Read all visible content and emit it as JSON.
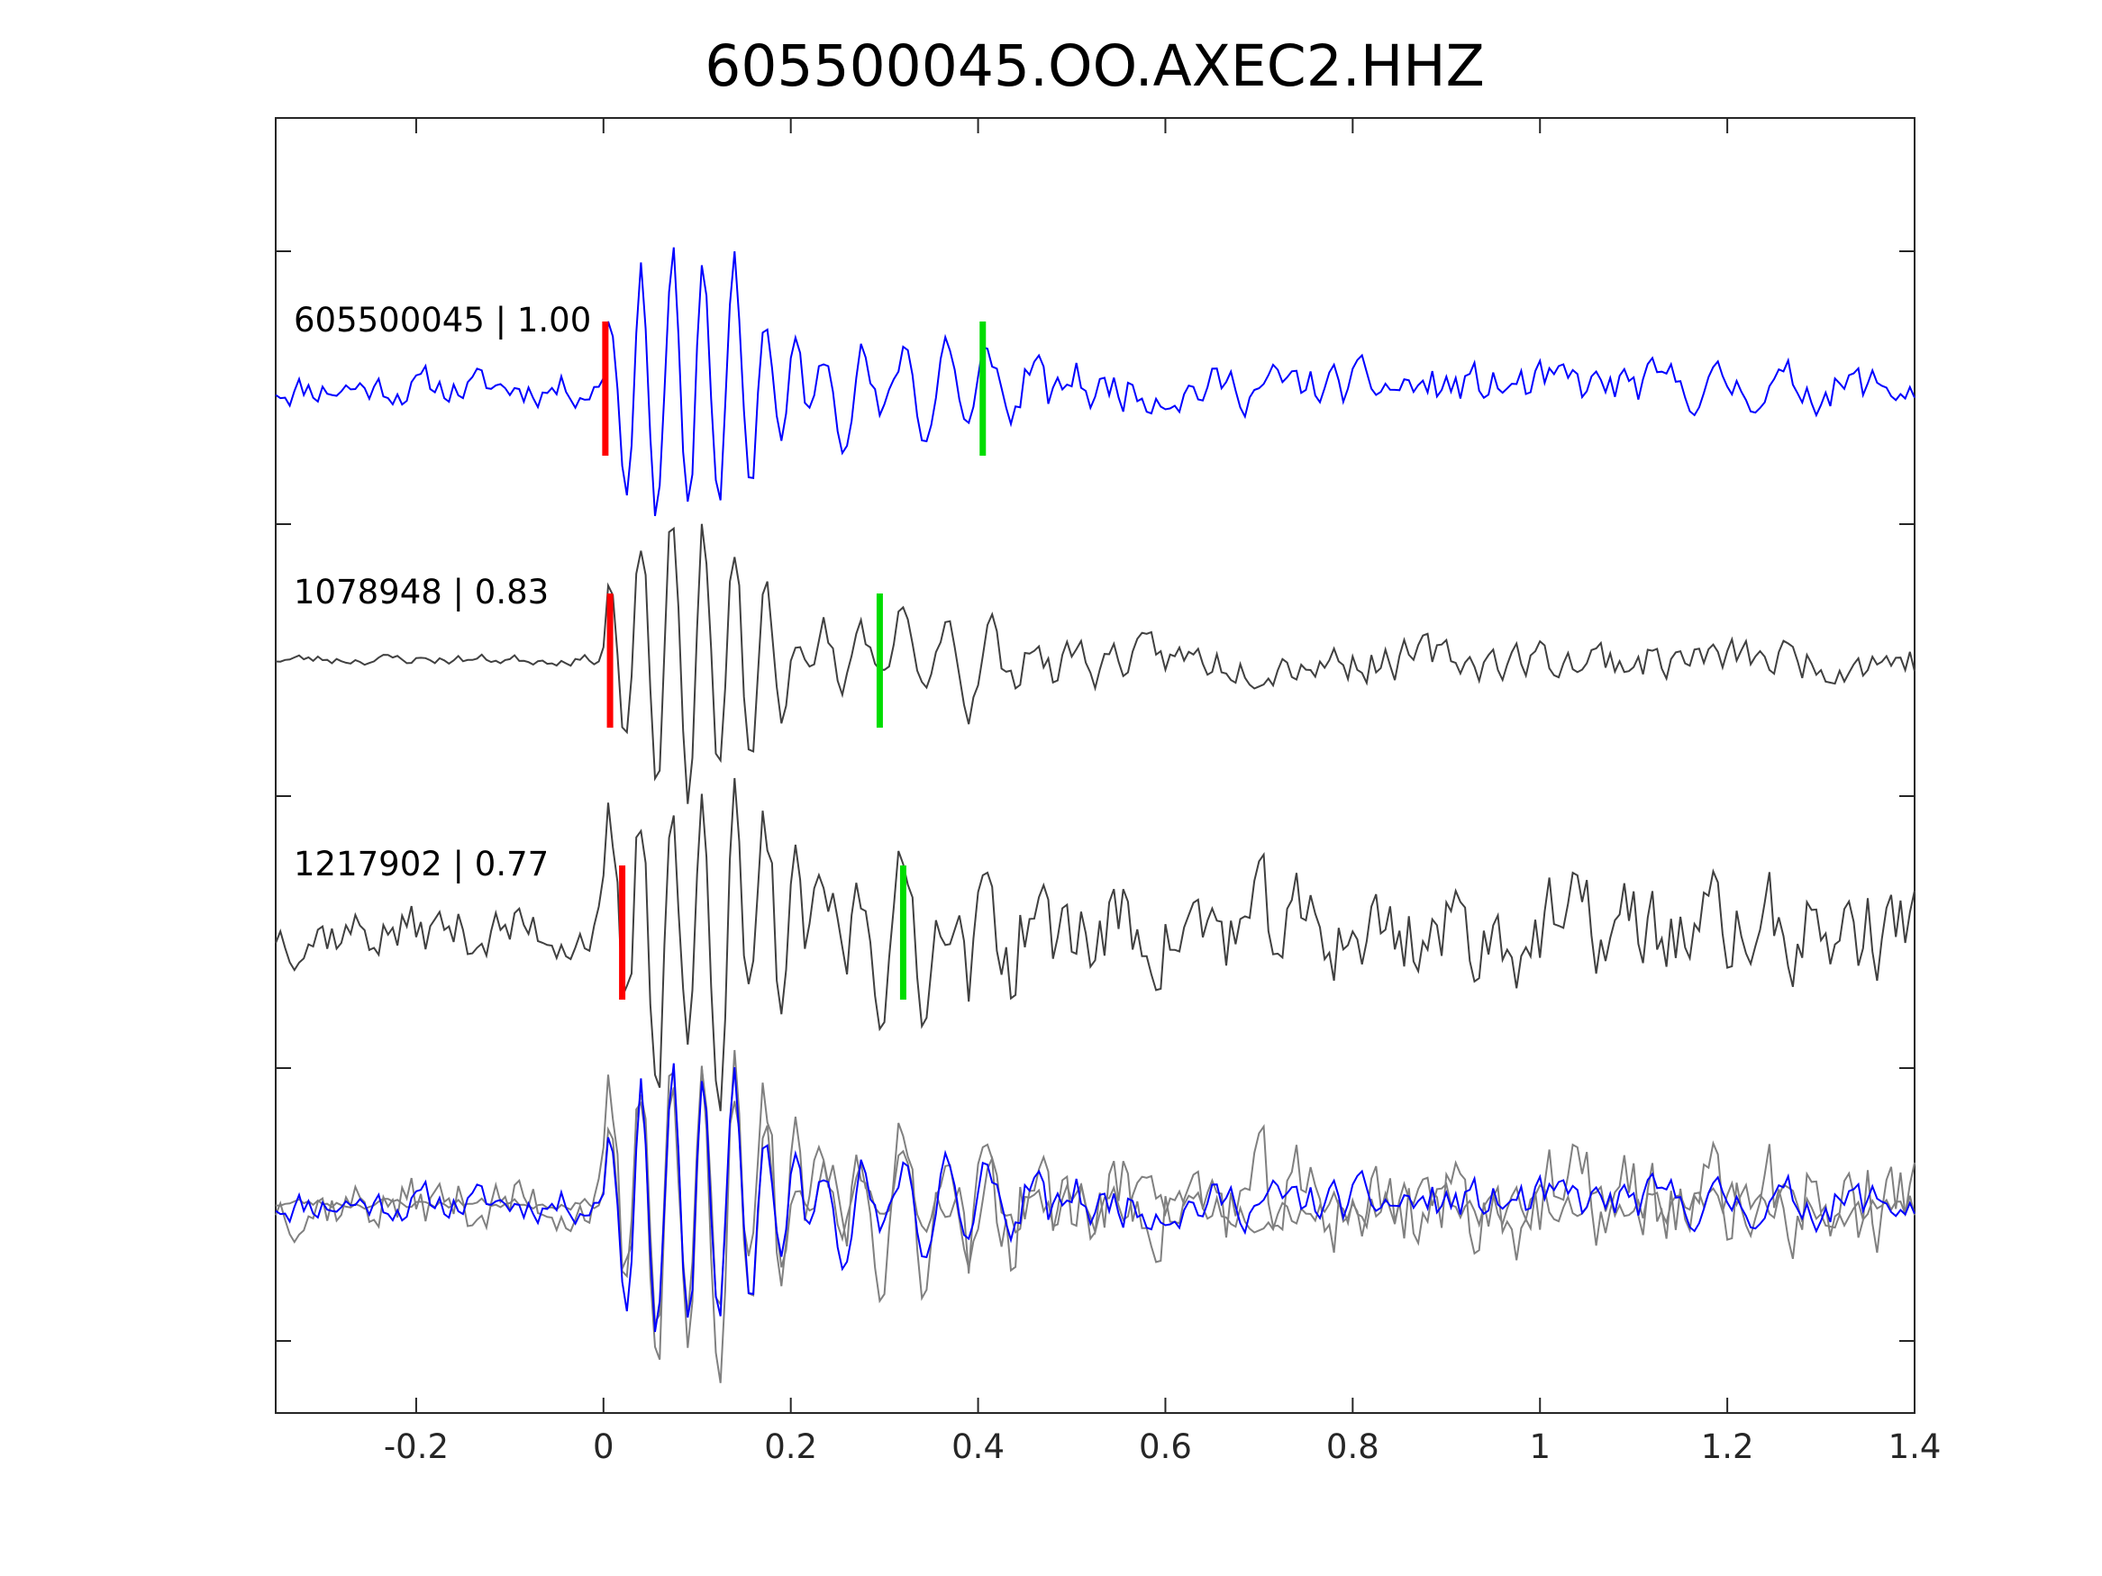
{
  "chart_data": {
    "type": "line",
    "title": "605500045.OO.AXEC2.HHZ",
    "xlabel": "",
    "ylabel": "",
    "xlim": [
      -0.35,
      1.4
    ],
    "x_ticks": [
      -0.2,
      0,
      0.2,
      0.4,
      0.6,
      0.8,
      1,
      1.2,
      1.4
    ],
    "x_tick_labels": [
      "-0.2",
      "0",
      "0.2",
      "0.4",
      "0.6",
      "0.8",
      "1",
      "1.2",
      "1.4"
    ],
    "y_tick_labels": [],
    "grid": false,
    "traces": [
      {
        "label": "605500045 | 1.00",
        "event_id": "605500045",
        "correlation": "1.00",
        "color": "#0000ff",
        "noise": 0.13,
        "pre_noise": 0.1,
        "red_pick": 0.002,
        "green_pick": 0.405,
        "seed": 11
      },
      {
        "label": "1078948 | 0.83",
        "event_id": "1078948",
        "correlation": "0.83",
        "color": "#404040",
        "noise": 0.12,
        "pre_noise": 0.03,
        "red_pick": 0.007,
        "green_pick": 0.295,
        "seed": 23
      },
      {
        "label": "1217902 | 0.77",
        "event_id": "1217902",
        "correlation": "0.77",
        "color": "#404040",
        "noise": 0.3,
        "pre_noise": 0.16,
        "red_pick": 0.02,
        "green_pick": 0.32,
        "seed": 37
      }
    ],
    "stack": {
      "description": "overlay of all traces",
      "colors": [
        "#808080",
        "#808080",
        "#0000ff"
      ]
    },
    "pick_colors": {
      "p": "#ff0000",
      "s": "#00dd00"
    }
  }
}
